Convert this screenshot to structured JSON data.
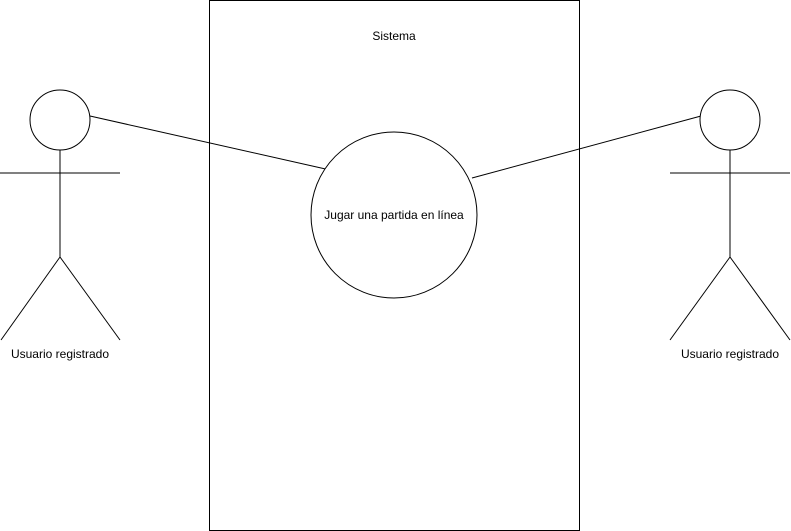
{
  "diagram": {
    "system": {
      "title": "Sistema"
    },
    "use_case": {
      "label": "Jugar una partida en línea"
    },
    "actors": [
      {
        "label": "Usuario registrado"
      },
      {
        "label": "Usuario registrado"
      }
    ],
    "colors": {
      "stroke": "#000000",
      "fill": "#ffffff",
      "text": "#000000"
    }
  }
}
